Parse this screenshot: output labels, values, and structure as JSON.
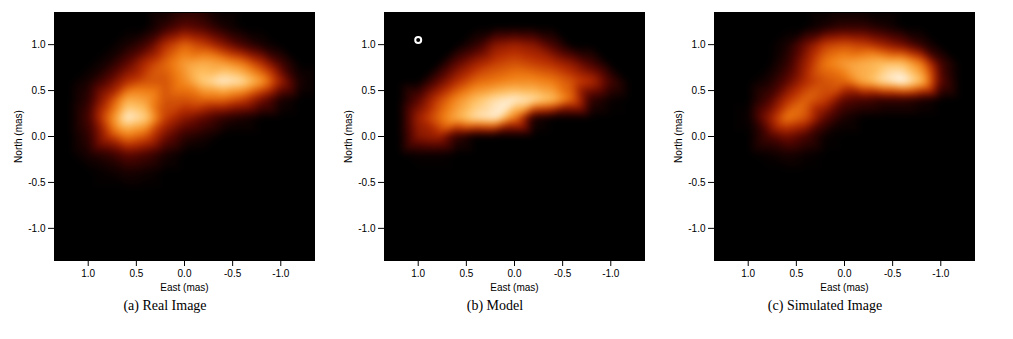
{
  "chart_data": [
    {
      "type": "heatmap",
      "title": "(a) Real Image",
      "x_label": "East (mas)",
      "y_label": "North (mas)",
      "xlim": [
        1.35,
        -1.35
      ],
      "ylim": [
        -1.35,
        1.35
      ],
      "xticks": [
        {
          "value": 1,
          "label": "1.0"
        },
        0.5,
        {
          "value": 0,
          "label": "0.0"
        },
        -0.5,
        {
          "value": -1,
          "label": "-1.0"
        }
      ],
      "yticks": [
        {
          "value": -1,
          "label": "-1.0"
        },
        -0.5,
        {
          "value": 0,
          "label": "0.0"
        },
        0.5,
        {
          "value": 1,
          "label": "1.0"
        }
      ],
      "x_points": [
        1.4,
        1.2,
        1.0,
        0.8,
        0.6,
        0.4,
        0.2,
        0.0,
        -0.2,
        -0.4,
        -0.6,
        -0.8,
        -1.0,
        -1.2,
        -1.4
      ],
      "y_points": [
        1.4,
        1.2,
        1.0,
        0.8,
        0.6,
        0.4,
        0.2,
        0.0,
        -0.2,
        -0.4,
        -0.6,
        -0.8,
        -1.0,
        -1.2,
        -1.4
      ],
      "cells": [
        [
          0,
          0,
          0,
          0,
          0,
          0,
          0,
          0.05,
          0.05,
          0,
          0,
          0,
          0,
          0,
          0
        ],
        [
          0,
          0,
          0,
          0,
          0,
          0,
          0.1,
          0.2,
          0.15,
          0.05,
          0,
          0,
          0,
          0,
          0
        ],
        [
          0,
          0,
          0,
          0,
          0.05,
          0.15,
          0.4,
          0.55,
          0.45,
          0.3,
          0.15,
          0.05,
          0,
          0,
          0
        ],
        [
          0,
          0,
          0,
          0.05,
          0.2,
          0.4,
          0.55,
          0.7,
          0.75,
          0.7,
          0.6,
          0.4,
          0.15,
          0,
          0
        ],
        [
          0,
          0,
          0.05,
          0.2,
          0.4,
          0.5,
          0.5,
          0.65,
          0.85,
          0.95,
          0.9,
          0.7,
          0.35,
          0.05,
          0
        ],
        [
          0,
          0,
          0.1,
          0.4,
          0.75,
          0.7,
          0.5,
          0.5,
          0.55,
          0.55,
          0.45,
          0.25,
          0.05,
          0,
          0
        ],
        [
          0,
          0,
          0.15,
          0.55,
          0.95,
          0.85,
          0.45,
          0.3,
          0.2,
          0.1,
          0.05,
          0,
          0,
          0,
          0
        ],
        [
          0,
          0,
          0.1,
          0.4,
          0.6,
          0.5,
          0.25,
          0.1,
          0.05,
          0,
          0,
          0,
          0,
          0,
          0
        ],
        [
          0,
          0,
          0.05,
          0.1,
          0.2,
          0.15,
          0.05,
          0,
          0,
          0,
          0,
          0,
          0,
          0,
          0
        ],
        [
          0,
          0,
          0,
          0.02,
          0.05,
          0.03,
          0,
          0,
          0,
          0,
          0,
          0,
          0,
          0,
          0
        ],
        [
          0,
          0,
          0,
          0,
          0,
          0,
          0,
          0,
          0,
          0,
          0,
          0,
          0,
          0,
          0
        ],
        [
          0,
          0,
          0,
          0,
          0,
          0,
          0,
          0,
          0,
          0,
          0,
          0,
          0,
          0,
          0
        ],
        [
          0,
          0,
          0,
          0,
          0,
          0,
          0,
          0,
          0,
          0,
          0,
          0,
          0,
          0,
          0
        ],
        [
          0,
          0,
          0,
          0,
          0,
          0,
          0,
          0,
          0,
          0,
          0,
          0,
          0,
          0,
          0
        ],
        [
          0,
          0,
          0,
          0,
          0,
          0,
          0,
          0,
          0,
          0,
          0,
          0,
          0,
          0,
          0
        ]
      ]
    },
    {
      "type": "heatmap",
      "title": "(b) Model",
      "x_label": "East (mas)",
      "y_label": "North (mas)",
      "xlim": [
        1.35,
        -1.35
      ],
      "ylim": [
        -1.35,
        1.35
      ],
      "xticks": [
        {
          "value": 1,
          "label": "1.0"
        },
        0.5,
        {
          "value": 0,
          "label": "0.0"
        },
        -0.5,
        {
          "value": -1,
          "label": "-1.0"
        }
      ],
      "yticks": [
        {
          "value": -1,
          "label": "-1.0"
        },
        -0.5,
        {
          "value": 0,
          "label": "0.0"
        },
        0.5,
        {
          "value": 1,
          "label": "1.0"
        }
      ],
      "circle": {
        "x": 1.0,
        "y": 1.05,
        "r": 0.2
      },
      "x_points": [
        1.4,
        1.2,
        1.0,
        0.8,
        0.6,
        0.4,
        0.2,
        0.0,
        -0.2,
        -0.4,
        -0.6,
        -0.8,
        -1.0,
        -1.2,
        -1.4
      ],
      "y_points": [
        1.4,
        1.2,
        1.0,
        0.8,
        0.6,
        0.4,
        0.2,
        0.0,
        -0.2,
        -0.4,
        -0.6,
        -0.8,
        -1.0,
        -1.2,
        -1.4
      ],
      "cells": [
        [
          0,
          0,
          0,
          0,
          0,
          0,
          0,
          0,
          0,
          0,
          0,
          0,
          0,
          0,
          0
        ],
        [
          0,
          0,
          0,
          0,
          0,
          0,
          0,
          0,
          0,
          0,
          0,
          0,
          0,
          0,
          0
        ],
        [
          0,
          0,
          0,
          0,
          0,
          0.1,
          0.3,
          0.35,
          0.3,
          0.15,
          0,
          0,
          0,
          0,
          0
        ],
        [
          0,
          0,
          0,
          0,
          0.2,
          0.35,
          0.45,
          0.5,
          0.45,
          0.4,
          0.3,
          0.15,
          0,
          0,
          0
        ],
        [
          0,
          0,
          0,
          0.2,
          0.4,
          0.55,
          0.6,
          0.65,
          0.65,
          0.6,
          0.5,
          0.4,
          0.15,
          0,
          0
        ],
        [
          0,
          0,
          0.2,
          0.45,
          0.65,
          0.8,
          0.9,
          0.95,
          0.9,
          0.8,
          0.55,
          0.1,
          0.02,
          0,
          0
        ],
        [
          0,
          0,
          0.35,
          0.55,
          0.75,
          0.9,
          0.95,
          0.6,
          0.05,
          0,
          0,
          0,
          0,
          0,
          0
        ],
        [
          0,
          0,
          0.3,
          0.35,
          0.1,
          0,
          0,
          0,
          0,
          0,
          0,
          0,
          0,
          0,
          0
        ],
        [
          0,
          0,
          0.02,
          0.02,
          0,
          0,
          0,
          0,
          0,
          0,
          0,
          0,
          0,
          0,
          0
        ],
        [
          0,
          0,
          0,
          0,
          0,
          0,
          0,
          0,
          0,
          0,
          0,
          0,
          0,
          0,
          0
        ],
        [
          0,
          0,
          0,
          0,
          0,
          0,
          0,
          0,
          0,
          0,
          0,
          0,
          0,
          0,
          0
        ],
        [
          0,
          0,
          0,
          0,
          0,
          0,
          0,
          0,
          0,
          0,
          0,
          0,
          0,
          0,
          0
        ],
        [
          0,
          0,
          0,
          0,
          0,
          0,
          0,
          0,
          0,
          0,
          0,
          0,
          0,
          0,
          0
        ],
        [
          0,
          0,
          0,
          0,
          0,
          0,
          0,
          0,
          0,
          0,
          0,
          0,
          0,
          0,
          0
        ],
        [
          0,
          0,
          0,
          0,
          0,
          0,
          0,
          0,
          0,
          0,
          0,
          0,
          0,
          0,
          0
        ]
      ]
    },
    {
      "type": "heatmap",
      "title": "(c) Simulated Image",
      "x_label": "East (mas)",
      "y_label": "North (mas)",
      "xlim": [
        1.35,
        -1.35
      ],
      "ylim": [
        -1.35,
        1.35
      ],
      "xticks": [
        {
          "value": 1,
          "label": "1.0"
        },
        0.5,
        {
          "value": 0,
          "label": "0.0"
        },
        -0.5,
        {
          "value": -1,
          "label": "-1.0"
        }
      ],
      "yticks": [
        {
          "value": -1,
          "label": "-1.0"
        },
        -0.5,
        {
          "value": 0,
          "label": "0.0"
        },
        0.5,
        {
          "value": 1,
          "label": "1.0"
        }
      ],
      "x_points": [
        1.4,
        1.2,
        1.0,
        0.8,
        0.6,
        0.4,
        0.2,
        0.0,
        -0.2,
        -0.4,
        -0.6,
        -0.8,
        -1.0,
        -1.2,
        -1.4
      ],
      "y_points": [
        1.4,
        1.2,
        1.0,
        0.8,
        0.6,
        0.4,
        0.2,
        0.0,
        -0.2,
        -0.4,
        -0.6,
        -0.8,
        -1.0,
        -1.2,
        -1.4
      ],
      "cells": [
        [
          0,
          0,
          0,
          0,
          0,
          0,
          0,
          0,
          0,
          0,
          0,
          0,
          0,
          0,
          0
        ],
        [
          0,
          0,
          0,
          0,
          0,
          0,
          0.05,
          0.1,
          0.1,
          0.05,
          0,
          0,
          0,
          0,
          0
        ],
        [
          0,
          0,
          0,
          0,
          0.05,
          0.25,
          0.45,
          0.5,
          0.45,
          0.35,
          0.25,
          0.1,
          0,
          0,
          0
        ],
        [
          0,
          0,
          0,
          0,
          0.1,
          0.35,
          0.6,
          0.7,
          0.75,
          0.8,
          0.8,
          0.6,
          0.15,
          0,
          0
        ],
        [
          0,
          0,
          0,
          0.05,
          0.2,
          0.4,
          0.5,
          0.55,
          0.75,
          0.9,
          1.0,
          0.8,
          0.2,
          0,
          0
        ],
        [
          0,
          0,
          0,
          0.15,
          0.4,
          0.55,
          0.45,
          0.2,
          0.15,
          0.1,
          0.1,
          0.05,
          0,
          0,
          0
        ],
        [
          0,
          0,
          0.02,
          0.3,
          0.6,
          0.5,
          0.2,
          0.05,
          0,
          0,
          0,
          0,
          0,
          0,
          0
        ],
        [
          0,
          0,
          0,
          0.15,
          0.25,
          0.15,
          0.02,
          0,
          0,
          0,
          0,
          0,
          0,
          0,
          0
        ],
        [
          0,
          0,
          0,
          0.02,
          0.05,
          0.02,
          0,
          0,
          0,
          0,
          0,
          0,
          0,
          0,
          0
        ],
        [
          0,
          0,
          0,
          0,
          0,
          0,
          0,
          0,
          0,
          0,
          0,
          0,
          0,
          0,
          0
        ],
        [
          0,
          0,
          0,
          0,
          0,
          0,
          0,
          0,
          0,
          0,
          0,
          0,
          0,
          0,
          0
        ],
        [
          0,
          0,
          0,
          0,
          0,
          0,
          0,
          0,
          0,
          0,
          0,
          0,
          0,
          0,
          0
        ],
        [
          0,
          0,
          0,
          0,
          0,
          0,
          0,
          0,
          0,
          0,
          0,
          0,
          0,
          0,
          0
        ],
        [
          0,
          0,
          0,
          0,
          0,
          0,
          0,
          0,
          0,
          0,
          0,
          0,
          0,
          0,
          0
        ],
        [
          0,
          0,
          0,
          0,
          0,
          0,
          0,
          0,
          0,
          0,
          0,
          0,
          0,
          0,
          0
        ]
      ]
    }
  ]
}
